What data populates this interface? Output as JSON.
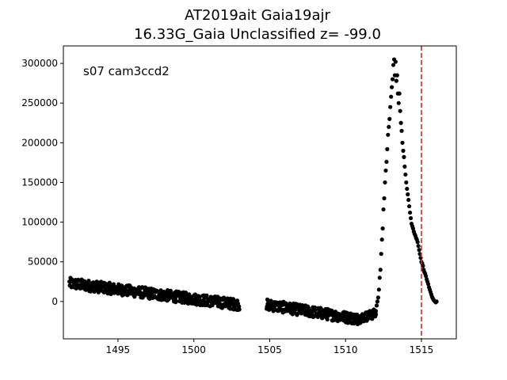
{
  "chart_data": {
    "type": "scatter",
    "title_line1": "AT2019ait  Gaia19ajr",
    "title_line2": "16.33G_Gaia Unclassified z= -99.0",
    "annotation": "s07 cam3ccd2",
    "xlabel": "",
    "ylabel": "",
    "xlim": [
      1491.4,
      1517.3
    ],
    "ylim": [
      -47000,
      322000
    ],
    "xticks": [
      1495,
      1500,
      1505,
      1510,
      1515
    ],
    "xtick_labels": [
      "1495",
      "1500",
      "1505",
      "1510",
      "1515"
    ],
    "yticks": [
      0,
      50000,
      100000,
      150000,
      200000,
      250000,
      300000
    ],
    "ytick_labels": [
      "0",
      "50000",
      "100000",
      "150000",
      "200000",
      "250000",
      "300000"
    ],
    "vline": {
      "x": 1515.0,
      "style": "dashed",
      "color": "#d62728"
    },
    "marker_color": "#000000",
    "grid": false,
    "series": [
      {
        "segments": [
          {
            "x_start": 1491.8,
            "x_end": 1503.0,
            "y_start": 23000,
            "y_end": -4000,
            "scatter": 7000
          },
          {
            "x_start": 1504.8,
            "x_end": 1510.8,
            "y_start": -4000,
            "y_end": -22000,
            "scatter": 7000
          },
          {
            "x_start": 1510.8,
            "x_end": 1512.0,
            "y_start": -22000,
            "y_end": -15000,
            "scatter": 6000
          }
        ],
        "rise": [
          [
            1512.0,
            -12000
          ],
          [
            1512.05,
            -5000
          ],
          [
            1512.1,
            0
          ],
          [
            1512.15,
            5000
          ],
          [
            1512.2,
            15000
          ],
          [
            1512.25,
            30000
          ],
          [
            1512.3,
            40000
          ],
          [
            1512.35,
            60000
          ],
          [
            1512.4,
            78000
          ],
          [
            1512.45,
            92000
          ],
          [
            1512.5,
            116000
          ],
          [
            1512.55,
            130000
          ],
          [
            1512.6,
            150000
          ],
          [
            1512.65,
            165000
          ],
          [
            1512.7,
            176000
          ],
          [
            1512.75,
            192000
          ],
          [
            1512.8,
            210000
          ],
          [
            1512.85,
            220000
          ],
          [
            1512.9,
            230000
          ],
          [
            1512.95,
            245000
          ],
          [
            1513.0,
            258000
          ],
          [
            1513.05,
            270000
          ],
          [
            1513.1,
            280000
          ],
          [
            1513.15,
            298000
          ],
          [
            1513.2,
            305000
          ],
          [
            1513.25,
            285000
          ],
          [
            1513.3,
            302000
          ],
          [
            1513.35,
            278000
          ],
          [
            1513.4,
            285000
          ],
          [
            1513.45,
            262000
          ]
        ],
        "decline": [
          [
            1513.5,
            250000
          ],
          [
            1513.55,
            262000
          ],
          [
            1513.6,
            240000
          ],
          [
            1513.65,
            225000
          ],
          [
            1513.7,
            215000
          ],
          [
            1513.75,
            200000
          ],
          [
            1513.8,
            190000
          ],
          [
            1513.85,
            182000
          ],
          [
            1513.9,
            170000
          ],
          [
            1513.95,
            160000
          ],
          [
            1514.0,
            150000
          ],
          [
            1514.05,
            142000
          ],
          [
            1514.1,
            135000
          ],
          [
            1514.15,
            128000
          ],
          [
            1514.2,
            120000
          ],
          [
            1514.25,
            112000
          ],
          [
            1514.3,
            105000
          ],
          [
            1514.35,
            98000
          ],
          [
            1514.4,
            95000
          ],
          [
            1514.45,
            92000
          ],
          [
            1514.5,
            88000
          ],
          [
            1514.55,
            85000
          ],
          [
            1514.6,
            83000
          ],
          [
            1514.65,
            80000
          ],
          [
            1514.7,
            78000
          ],
          [
            1514.75,
            75000
          ],
          [
            1514.8,
            70000
          ],
          [
            1514.85,
            65000
          ],
          [
            1514.9,
            60000
          ],
          [
            1514.95,
            55000
          ],
          [
            1515.0,
            50000
          ],
          [
            1515.05,
            48000
          ],
          [
            1515.1,
            45000
          ],
          [
            1515.15,
            40000
          ],
          [
            1515.2,
            37000
          ],
          [
            1515.25,
            35000
          ],
          [
            1515.3,
            32000
          ],
          [
            1515.35,
            28000
          ],
          [
            1515.4,
            25000
          ],
          [
            1515.45,
            22000
          ],
          [
            1515.5,
            18000
          ],
          [
            1515.55,
            15000
          ],
          [
            1515.6,
            12000
          ],
          [
            1515.65,
            9000
          ],
          [
            1515.7,
            6000
          ],
          [
            1515.75,
            4000
          ],
          [
            1515.8,
            2000
          ],
          [
            1515.85,
            1000
          ],
          [
            1515.9,
            0
          ],
          [
            1515.95,
            -1000
          ],
          [
            1516.0,
            0
          ]
        ]
      }
    ]
  }
}
